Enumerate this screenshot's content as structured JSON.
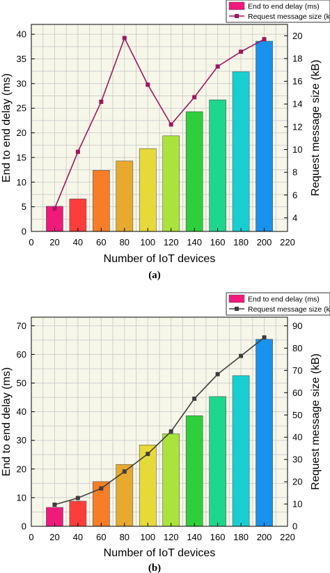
{
  "chart_data": [
    {
      "type": "bar",
      "panel_label": "(a)",
      "xlabel": "Number of IoT devices",
      "ylabel": "End to end delay (ms)",
      "y2label": "Request message size (kB)",
      "xlim": [
        0,
        220
      ],
      "xticks": [
        0,
        20,
        40,
        60,
        80,
        100,
        120,
        140,
        160,
        180,
        200,
        220
      ],
      "ylim": [
        0,
        42
      ],
      "yticks": [
        0,
        5,
        10,
        15,
        20,
        25,
        30,
        35,
        40
      ],
      "y2lim": [
        2.8,
        21
      ],
      "y2ticks": [
        4,
        6,
        8,
        10,
        12,
        14,
        16,
        18,
        20
      ],
      "x": [
        20,
        40,
        60,
        80,
        100,
        120,
        140,
        160,
        180,
        200
      ],
      "series": [
        {
          "name": "End to end delay (ms)",
          "kind": "bar",
          "axis": "left",
          "values": [
            5.1,
            6.6,
            12.4,
            14.3,
            16.8,
            19.4,
            24.3,
            26.7,
            32.4,
            38.6
          ]
        },
        {
          "name": "Request message size (kB)",
          "kind": "line",
          "axis": "right",
          "color": "#a0155f",
          "values": [
            4.8,
            9.8,
            14.2,
            19.8,
            15.7,
            12.2,
            14.6,
            17.3,
            18.6,
            19.7
          ]
        }
      ],
      "bar_colors": [
        "#f0197c",
        "#fb3d3b",
        "#f77e26",
        "#e7a92e",
        "#e6d93a",
        "#a9e33c",
        "#2fce3c",
        "#1ed68e",
        "#17cfd0",
        "#1892ea"
      ],
      "grid": true,
      "legend": "top-right"
    },
    {
      "type": "bar",
      "panel_label": "(b)",
      "xlabel": "Number of IoT devices",
      "ylabel": "End to end delay (ms)",
      "y2label": "Request message size (kB)",
      "xlim": [
        0,
        220
      ],
      "xticks": [
        0,
        20,
        40,
        60,
        80,
        100,
        120,
        140,
        160,
        180,
        200,
        220
      ],
      "ylim": [
        0,
        73
      ],
      "yticks": [
        0,
        10,
        20,
        30,
        40,
        50,
        60,
        70
      ],
      "y2lim": [
        0,
        93.9
      ],
      "y2ticks": [
        0,
        10,
        20,
        30,
        40,
        50,
        60,
        70,
        80,
        90
      ],
      "x": [
        20,
        40,
        60,
        80,
        100,
        120,
        140,
        160,
        180,
        200
      ],
      "series": [
        {
          "name": "End to end delay (ms)",
          "kind": "bar",
          "axis": "left",
          "values": [
            6.6,
            8.8,
            15.6,
            21.6,
            28.4,
            32.3,
            38.6,
            45.3,
            52.6,
            65.3
          ]
        },
        {
          "name": "Request message size (kB)",
          "kind": "line",
          "axis": "right",
          "color": "#3d3d3d",
          "values": [
            9.7,
            12.7,
            17,
            24.6,
            32.5,
            42.6,
            57.3,
            68.3,
            76.5,
            84.8
          ]
        }
      ],
      "bar_colors": [
        "#f0197c",
        "#fb3d3b",
        "#f77e26",
        "#e7a92e",
        "#e6d93a",
        "#a9e33c",
        "#2fce3c",
        "#1ed68e",
        "#17cfd0",
        "#1892ea"
      ],
      "grid": true,
      "legend": "top-right"
    }
  ]
}
